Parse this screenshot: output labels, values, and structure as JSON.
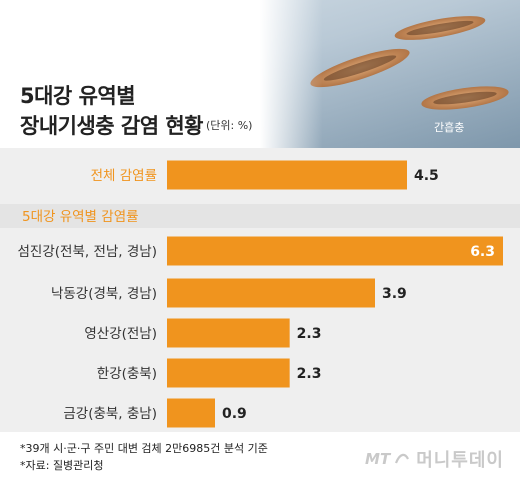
{
  "header": {
    "title_line1": "5대강 유역별",
    "title_line2": "장내기생충 감염 현황",
    "unit": "(단위: %)",
    "photo_caption": "간흡충"
  },
  "chart_data": {
    "type": "bar",
    "orientation": "horizontal",
    "title": "5대강 유역별 장내기생충 감염 현황",
    "unit": "%",
    "section_label": "5대강 유역별 감염률",
    "categories": [
      "전체 감염률",
      "섬진강(전북, 전남, 경남)",
      "낙동강(경북, 경남)",
      "영산강(전남)",
      "한강(충북)",
      "금강(충북, 충남)"
    ],
    "values": [
      4.5,
      6.3,
      3.9,
      2.3,
      2.3,
      0.9
    ],
    "value_labels": [
      "4.5",
      "6.3",
      "3.9",
      "2.3",
      "2.3",
      "0.9"
    ],
    "xlim": [
      0,
      6.3
    ],
    "grid": false,
    "bar_color": "#f0941e"
  },
  "footer": {
    "note1": "*39개 시·군·구 주민 대변 검체 2만6985건 분석 기준",
    "note2": "*자료: 질병관리청",
    "logo_mt": "MT",
    "logo_text": "머니투데이"
  },
  "colors": {
    "accent": "#f0941e",
    "section_band": "#e4e4e4",
    "chart_bg": "#efefef",
    "logo_gray": "#c9c9c9"
  }
}
